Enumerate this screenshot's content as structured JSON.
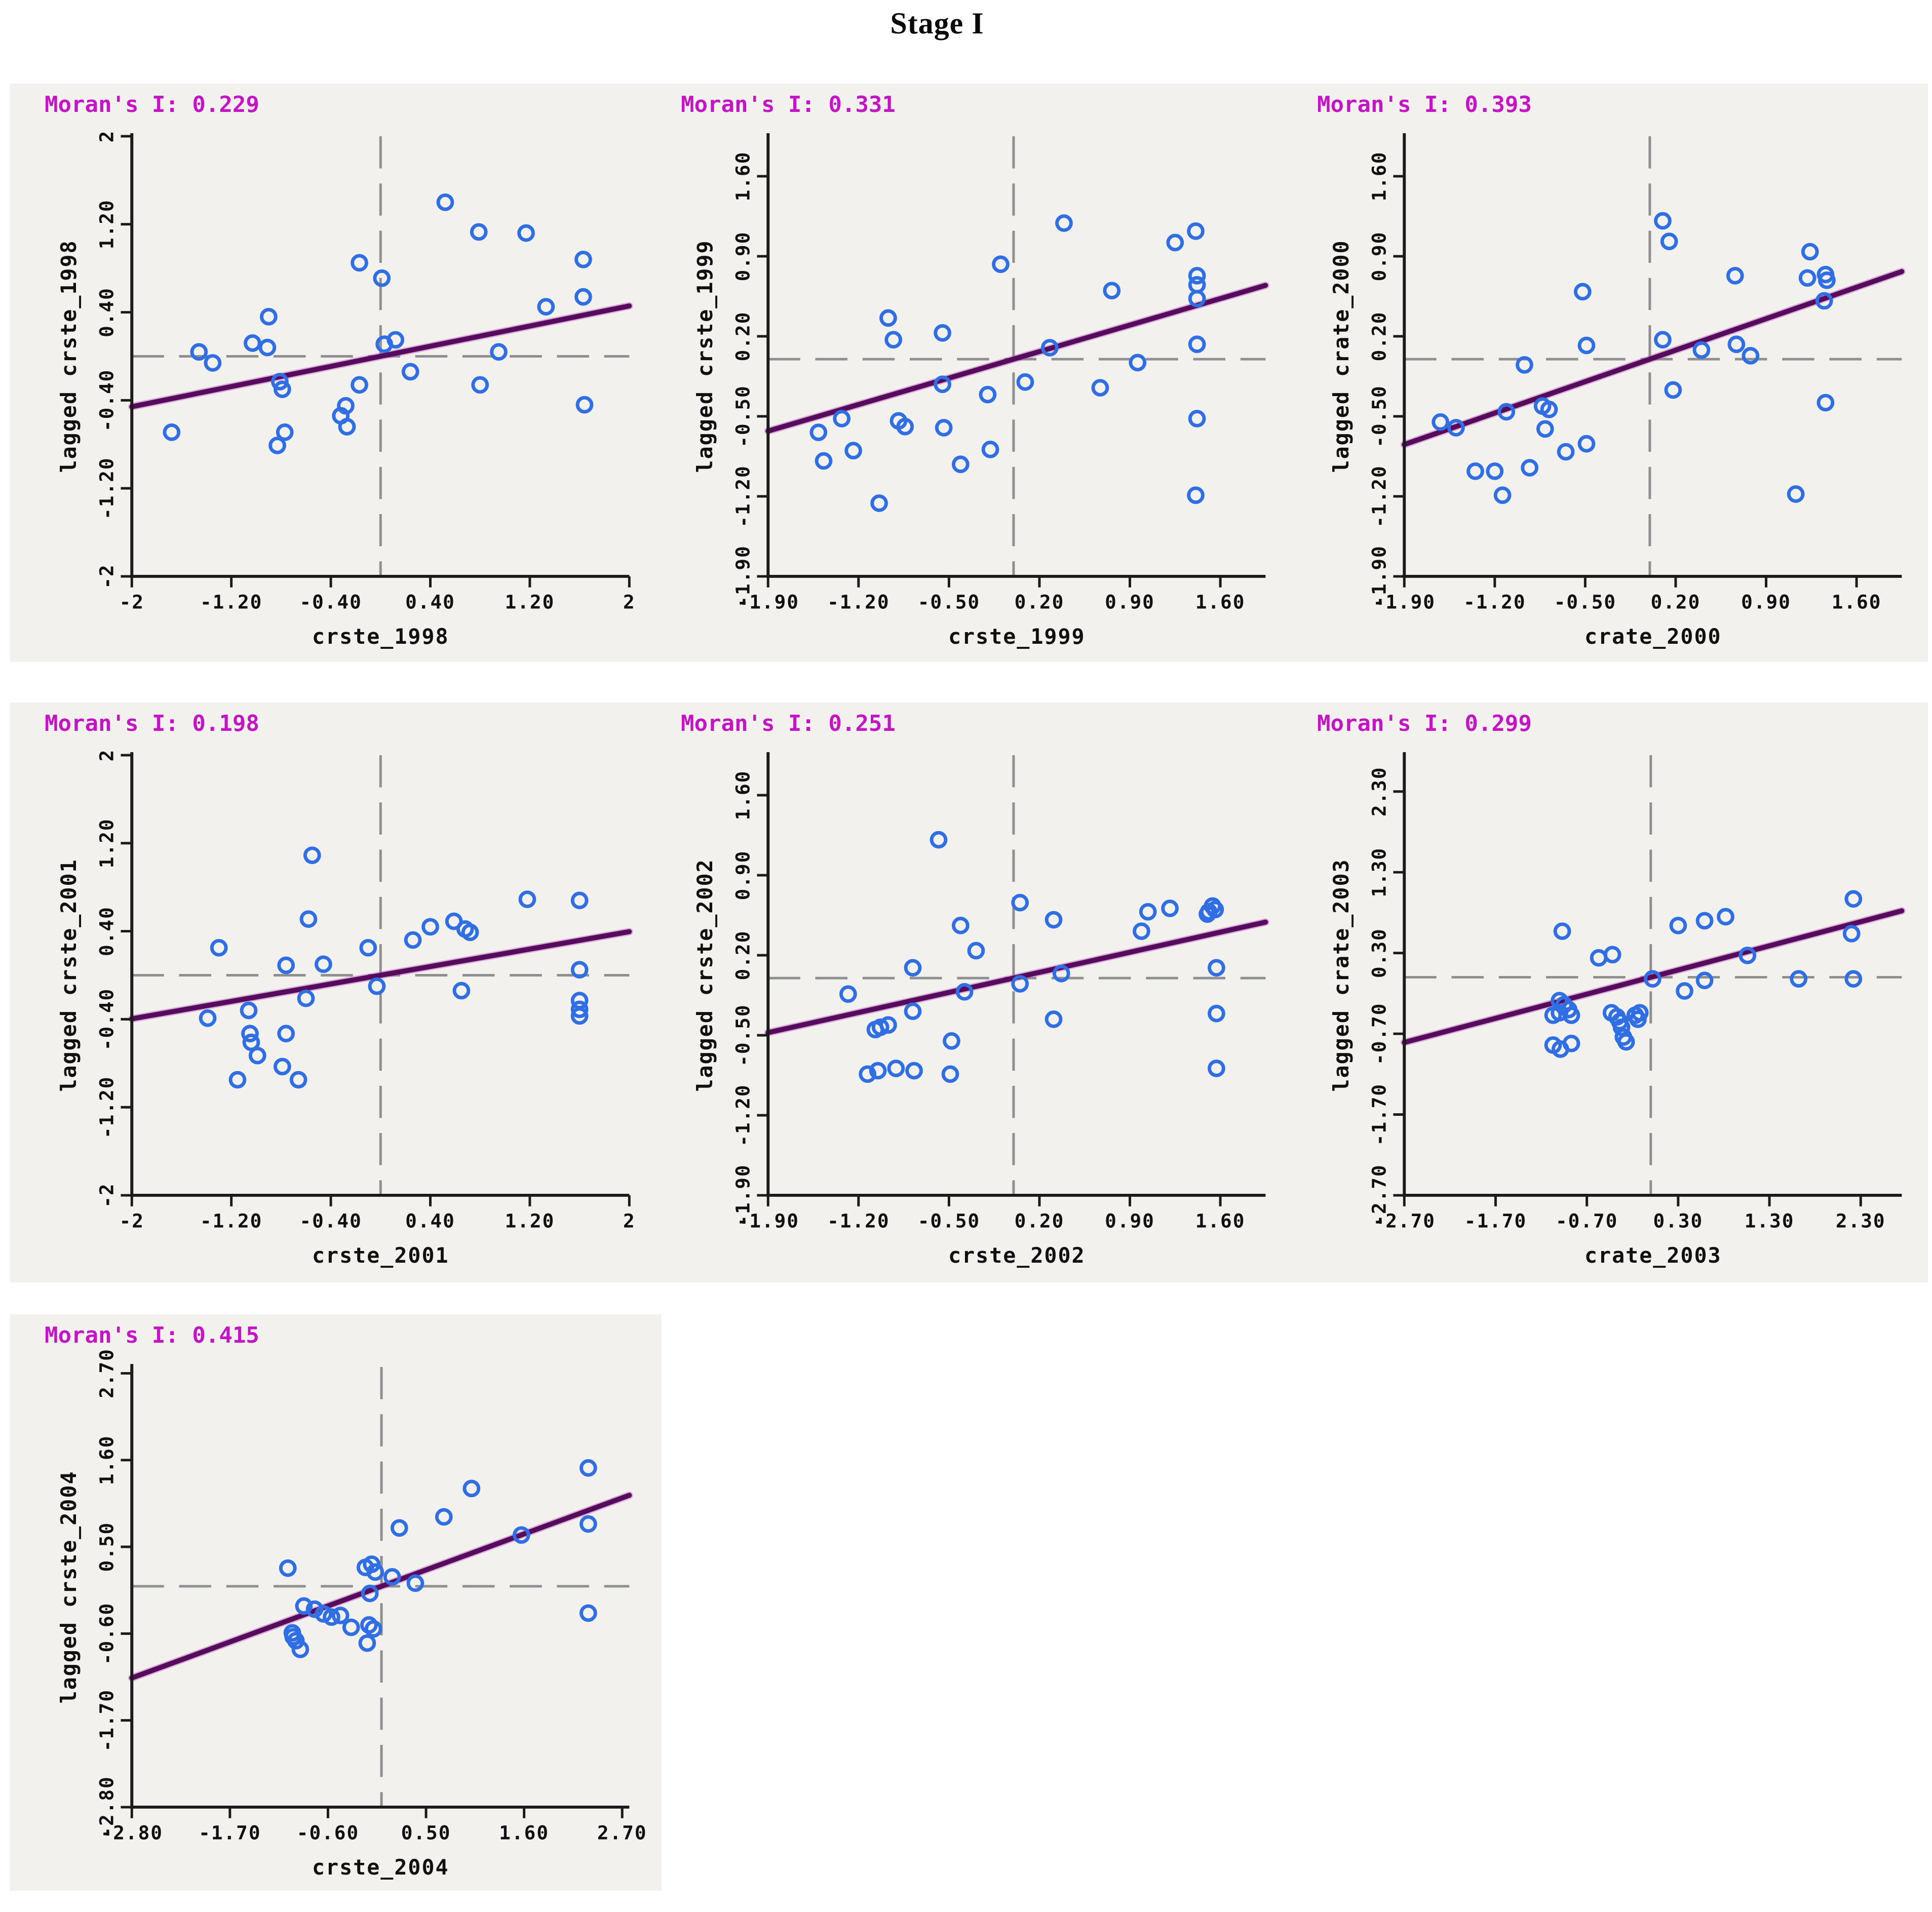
{
  "page": {
    "title": "Stage I"
  },
  "colors": {
    "panel_background": "#f2f1ee",
    "moran_text": "#c315c3",
    "point_stroke": "#2f6ee3",
    "regression_line": "#560b5c",
    "dashed_mean_lines": "#8f8f8f",
    "axis": "#1b1b1b"
  },
  "chart_data": [
    {
      "type": "scatter",
      "title": "Moran's I: 0.229",
      "moran_i": 0.229,
      "xlabel": "crste_1998",
      "ylabel": "lagged crste_1998",
      "xlim": [
        -2,
        2
      ],
      "ylim": [
        -2,
        2
      ],
      "xticks": [
        -2,
        -1.2,
        -0.4,
        0.4,
        1.2,
        2
      ],
      "xtick_labels": [
        "-2",
        "-1.20",
        "-0.40",
        "0.40",
        "1.20",
        "2"
      ],
      "yticks": [
        -2,
        -1.2,
        -0.4,
        0.4,
        1.2,
        2
      ],
      "ytick_labels": [
        "-2",
        "-1.20",
        "-0.40",
        "0.40",
        "1.20",
        "2"
      ],
      "mean_vline": 0,
      "mean_hline": 0,
      "regression": {
        "slope": 0.229,
        "intercept": 0
      },
      "grid": false,
      "legend": "none",
      "points": [
        [
          0.52,
          1.4
        ],
        [
          0.79,
          1.13
        ],
        [
          1.17,
          1.12
        ],
        [
          1.63,
          0.88
        ],
        [
          -0.17,
          0.85
        ],
        [
          0.01,
          0.71
        ],
        [
          1.63,
          0.54
        ],
        [
          1.33,
          0.45
        ],
        [
          -0.9,
          0.36
        ],
        [
          -1.03,
          0.12
        ],
        [
          -0.91,
          0.08
        ],
        [
          -1.46,
          0.04
        ],
        [
          0.03,
          0.11
        ],
        [
          0.12,
          0.15
        ],
        [
          -1.35,
          -0.06
        ],
        [
          0.24,
          -0.14
        ],
        [
          0.95,
          0.04
        ],
        [
          -0.17,
          -0.26
        ],
        [
          -0.81,
          -0.23
        ],
        [
          -0.79,
          -0.3
        ],
        [
          0.8,
          -0.26
        ],
        [
          -0.28,
          -0.45
        ],
        [
          -0.32,
          -0.54
        ],
        [
          -0.27,
          -0.64
        ],
        [
          1.64,
          -0.44
        ],
        [
          -1.68,
          -0.69
        ],
        [
          -0.77,
          -0.69
        ],
        [
          -0.83,
          -0.81
        ]
      ]
    },
    {
      "type": "scatter",
      "title": "Moran's I: 0.331",
      "moran_i": 0.331,
      "xlabel": "crste_1999",
      "ylabel": "lagged crste_1999",
      "xlim": [
        -1.9,
        1.95
      ],
      "ylim": [
        -1.9,
        1.95
      ],
      "xticks": [
        -1.9,
        -1.2,
        -0.5,
        0.2,
        0.9,
        1.6
      ],
      "xtick_labels": [
        "-1.90",
        "-1.20",
        "-0.50",
        "0.20",
        "0.90",
        "1.60"
      ],
      "yticks": [
        -1.9,
        -1.2,
        -0.5,
        0.2,
        0.9,
        1.6
      ],
      "ytick_labels": [
        "-1.90",
        "-1.20",
        "-0.50",
        "0.20",
        "0.90",
        "1.60"
      ],
      "mean_vline": 0,
      "mean_hline": 0,
      "regression": {
        "slope": 0.331,
        "intercept": 0
      },
      "grid": false,
      "legend": "none",
      "points": [
        [
          0.39,
          1.19
        ],
        [
          1.41,
          1.12
        ],
        [
          1.25,
          1.02
        ],
        [
          -0.1,
          0.83
        ],
        [
          0.76,
          0.6
        ],
        [
          1.42,
          0.73
        ],
        [
          1.42,
          0.65
        ],
        [
          1.42,
          0.53
        ],
        [
          -0.97,
          0.36
        ],
        [
          -0.93,
          0.17
        ],
        [
          -0.55,
          0.23
        ],
        [
          0.28,
          0.1
        ],
        [
          0.96,
          -0.03
        ],
        [
          1.42,
          0.13
        ],
        [
          -0.55,
          -0.22
        ],
        [
          -0.2,
          -0.31
        ],
        [
          0.09,
          -0.2
        ],
        [
          0.67,
          -0.25
        ],
        [
          -0.89,
          -0.54
        ],
        [
          -0.84,
          -0.59
        ],
        [
          -1.33,
          -0.52
        ],
        [
          -1.51,
          -0.64
        ],
        [
          -0.54,
          -0.6
        ],
        [
          -1.24,
          -0.8
        ],
        [
          -1.47,
          -0.89
        ],
        [
          -0.18,
          -0.79
        ],
        [
          -0.41,
          -0.92
        ],
        [
          1.42,
          -0.52
        ],
        [
          -1.04,
          -1.26
        ],
        [
          1.41,
          -1.19
        ]
      ]
    },
    {
      "type": "scatter",
      "title": "Moran's I: 0.393",
      "moran_i": 0.393,
      "xlabel": "crate_2000",
      "ylabel": "lagged crate_2000",
      "xlim": [
        -1.9,
        1.95
      ],
      "ylim": [
        -1.9,
        1.95
      ],
      "xticks": [
        -1.9,
        -1.2,
        -0.5,
        0.2,
        0.9,
        1.6
      ],
      "xtick_labels": [
        "-1.90",
        "-1.20",
        "-0.50",
        "0.20",
        "0.90",
        "1.60"
      ],
      "yticks": [
        -1.9,
        -1.2,
        -0.5,
        0.2,
        0.9,
        1.6
      ],
      "ytick_labels": [
        "-1.90",
        "-1.20",
        "-0.50",
        "0.20",
        "0.90",
        "1.60"
      ],
      "mean_vline": 0,
      "mean_hline": 0,
      "regression": {
        "slope": 0.393,
        "intercept": 0
      },
      "grid": false,
      "legend": "none",
      "points": [
        [
          0.1,
          1.21
        ],
        [
          0.15,
          1.03
        ],
        [
          1.24,
          0.94
        ],
        [
          0.66,
          0.73
        ],
        [
          1.22,
          0.71
        ],
        [
          1.36,
          0.74
        ],
        [
          1.37,
          0.69
        ],
        [
          -0.52,
          0.59
        ],
        [
          1.35,
          0.51
        ],
        [
          0.1,
          0.17
        ],
        [
          -0.49,
          0.12
        ],
        [
          0.4,
          0.08
        ],
        [
          0.67,
          0.13
        ],
        [
          0.78,
          0.03
        ],
        [
          -0.97,
          -0.05
        ],
        [
          0.18,
          -0.27
        ],
        [
          1.36,
          -0.38
        ],
        [
          -0.83,
          -0.41
        ],
        [
          -0.78,
          -0.44
        ],
        [
          -1.11,
          -0.46
        ],
        [
          -1.62,
          -0.55
        ],
        [
          -1.5,
          -0.6
        ],
        [
          -0.81,
          -0.61
        ],
        [
          -0.65,
          -0.81
        ],
        [
          -0.49,
          -0.74
        ],
        [
          -1.35,
          -0.98
        ],
        [
          -1.2,
          -0.98
        ],
        [
          -0.93,
          -0.95
        ],
        [
          -1.14,
          -1.19
        ],
        [
          1.13,
          -1.18
        ]
      ]
    },
    {
      "type": "scatter",
      "title": "Moran's I: 0.198",
      "moran_i": 0.198,
      "xlabel": "crste_2001",
      "ylabel": "lagged crste_2001",
      "xlim": [
        -2,
        2
      ],
      "ylim": [
        -2,
        2
      ],
      "xticks": [
        -2,
        -1.2,
        -0.4,
        0.4,
        1.2,
        2
      ],
      "xtick_labels": [
        "-2",
        "-1.20",
        "-0.40",
        "0.40",
        "1.20",
        "2"
      ],
      "yticks": [
        -2,
        -1.2,
        -0.4,
        0.4,
        1.2,
        2
      ],
      "ytick_labels": [
        "-2",
        "-1.20",
        "-0.40",
        "0.40",
        "1.20",
        "2"
      ],
      "mean_vline": 0,
      "mean_hline": 0,
      "regression": {
        "slope": 0.198,
        "intercept": 0
      },
      "grid": false,
      "legend": "none",
      "points": [
        [
          -0.55,
          1.09
        ],
        [
          1.18,
          0.69
        ],
        [
          1.6,
          0.68
        ],
        [
          -0.58,
          0.51
        ],
        [
          0.59,
          0.49
        ],
        [
          0.68,
          0.42
        ],
        [
          0.72,
          0.39
        ],
        [
          0.4,
          0.44
        ],
        [
          0.26,
          0.32
        ],
        [
          -0.1,
          0.25
        ],
        [
          -1.3,
          0.25
        ],
        [
          -0.76,
          0.09
        ],
        [
          -0.46,
          0.1
        ],
        [
          -0.03,
          -0.1
        ],
        [
          0.65,
          -0.14
        ],
        [
          1.6,
          0.05
        ],
        [
          1.6,
          -0.23
        ],
        [
          1.6,
          -0.31
        ],
        [
          1.6,
          -0.37
        ],
        [
          -0.6,
          -0.21
        ],
        [
          -1.06,
          -0.32
        ],
        [
          -1.39,
          -0.39
        ],
        [
          -1.05,
          -0.53
        ],
        [
          -1.04,
          -0.61
        ],
        [
          -0.76,
          -0.53
        ],
        [
          -0.99,
          -0.73
        ],
        [
          -0.79,
          -0.83
        ],
        [
          -1.15,
          -0.95
        ],
        [
          -0.66,
          -0.95
        ]
      ]
    },
    {
      "type": "scatter",
      "title": "Moran's I: 0.251",
      "moran_i": 0.251,
      "xlabel": "crste_2002",
      "ylabel": "lagged crste_2002",
      "xlim": [
        -1.9,
        1.95
      ],
      "ylim": [
        -1.9,
        1.95
      ],
      "xticks": [
        -1.9,
        -1.2,
        -0.5,
        0.2,
        0.9,
        1.6
      ],
      "xtick_labels": [
        "-1.90",
        "-1.20",
        "-0.50",
        "0.20",
        "0.90",
        "1.60"
      ],
      "yticks": [
        -1.9,
        -1.2,
        -0.5,
        0.2,
        0.9,
        1.6
      ],
      "ytick_labels": [
        "-1.90",
        "-1.20",
        "-0.50",
        "0.20",
        "0.90",
        "1.60"
      ],
      "mean_vline": 0,
      "mean_hline": 0,
      "regression": {
        "slope": 0.251,
        "intercept": 0
      },
      "grid": false,
      "legend": "none",
      "points": [
        [
          -0.58,
          1.21
        ],
        [
          0.05,
          0.66
        ],
        [
          0.31,
          0.51
        ],
        [
          1.04,
          0.58
        ],
        [
          1.21,
          0.61
        ],
        [
          0.99,
          0.41
        ],
        [
          1.5,
          0.56
        ],
        [
          1.54,
          0.63
        ],
        [
          1.56,
          0.6
        ],
        [
          1.51,
          0.58
        ],
        [
          -0.41,
          0.46
        ],
        [
          -0.29,
          0.24
        ],
        [
          -0.78,
          0.09
        ],
        [
          0.37,
          0.04
        ],
        [
          1.57,
          0.09
        ],
        [
          -0.38,
          -0.12
        ],
        [
          0.05,
          -0.05
        ],
        [
          -1.28,
          -0.14
        ],
        [
          -0.78,
          -0.29
        ],
        [
          0.31,
          -0.36
        ],
        [
          1.57,
          -0.31
        ],
        [
          -1.07,
          -0.45
        ],
        [
          -1.03,
          -0.43
        ],
        [
          -0.97,
          -0.41
        ],
        [
          -0.48,
          -0.55
        ],
        [
          -1.13,
          -0.84
        ],
        [
          -1.05,
          -0.81
        ],
        [
          -0.91,
          -0.79
        ],
        [
          -0.77,
          -0.81
        ],
        [
          -0.49,
          -0.84
        ],
        [
          1.57,
          -0.79
        ]
      ]
    },
    {
      "type": "scatter",
      "title": "Moran's I: 0.299",
      "moran_i": 0.299,
      "xlabel": "crate_2003",
      "ylabel": "lagged crate_2003",
      "xlim": [
        -2.7,
        2.75
      ],
      "ylim": [
        -2.7,
        2.75
      ],
      "xticks": [
        -2.7,
        -1.7,
        -0.7,
        0.3,
        1.3,
        2.3
      ],
      "xtick_labels": [
        "-2.70",
        "-1.70",
        "-0.70",
        "0.30",
        "1.30",
        "2.30"
      ],
      "yticks": [
        -2.7,
        -1.7,
        -0.7,
        0.3,
        1.3,
        2.3
      ],
      "ytick_labels": [
        "-2.70",
        "-1.70",
        "-0.70",
        "0.30",
        "1.30",
        "2.30"
      ],
      "mean_vline": 0,
      "mean_hline": 0,
      "regression": {
        "slope": 0.299,
        "intercept": 0
      },
      "grid": false,
      "legend": "none",
      "points": [
        [
          2.22,
          0.97
        ],
        [
          -0.97,
          0.57
        ],
        [
          0.3,
          0.64
        ],
        [
          0.59,
          0.7
        ],
        [
          0.82,
          0.75
        ],
        [
          2.2,
          0.54
        ],
        [
          -0.57,
          0.24
        ],
        [
          -0.42,
          0.28
        ],
        [
          1.06,
          0.27
        ],
        [
          0.02,
          -0.02
        ],
        [
          0.59,
          -0.04
        ],
        [
          1.62,
          -0.02
        ],
        [
          2.22,
          -0.02
        ],
        [
          0.37,
          -0.17
        ],
        [
          -1.0,
          -0.29
        ],
        [
          -0.95,
          -0.34
        ],
        [
          -0.9,
          -0.4
        ],
        [
          -1.0,
          -0.44
        ],
        [
          -1.07,
          -0.47
        ],
        [
          -0.87,
          -0.47
        ],
        [
          -0.43,
          -0.44
        ],
        [
          -0.37,
          -0.49
        ],
        [
          -0.34,
          -0.55
        ],
        [
          -0.32,
          -0.62
        ],
        [
          -0.17,
          -0.47
        ],
        [
          -0.12,
          -0.44
        ],
        [
          -0.14,
          -0.52
        ],
        [
          -0.3,
          -0.74
        ],
        [
          -0.27,
          -0.8
        ],
        [
          -1.07,
          -0.84
        ],
        [
          -0.99,
          -0.89
        ],
        [
          -0.87,
          -0.82
        ]
      ]
    },
    {
      "type": "scatter",
      "title": "Moran's I: 0.415",
      "moran_i": 0.415,
      "xlabel": "crste_2004",
      "ylabel": "lagged crste_2004",
      "xlim": [
        -2.8,
        2.78
      ],
      "ylim": [
        -2.8,
        2.78
      ],
      "xticks": [
        -2.8,
        -1.7,
        -0.6,
        0.5,
        1.6,
        2.7
      ],
      "xtick_labels": [
        "-2.80",
        "-1.70",
        "-0.60",
        "0.50",
        "1.60",
        "2.70"
      ],
      "yticks": [
        -2.8,
        -1.7,
        -0.6,
        0.5,
        1.6,
        2.7
      ],
      "ytick_labels": [
        "-2.80",
        "-1.70",
        "-0.60",
        "0.50",
        "1.60",
        "2.70"
      ],
      "mean_vline": 0,
      "mean_hline": 0,
      "regression": {
        "slope": 0.415,
        "intercept": 0
      },
      "grid": false,
      "legend": "none",
      "points": [
        [
          2.32,
          1.5
        ],
        [
          1.01,
          1.24
        ],
        [
          0.7,
          0.88
        ],
        [
          0.2,
          0.74
        ],
        [
          1.57,
          0.65
        ],
        [
          2.32,
          0.79
        ],
        [
          -1.05,
          0.23
        ],
        [
          -0.18,
          0.24
        ],
        [
          -0.11,
          0.28
        ],
        [
          -0.07,
          0.18
        ],
        [
          0.12,
          0.12
        ],
        [
          -0.13,
          -0.09
        ],
        [
          0.38,
          0.04
        ],
        [
          -0.87,
          -0.25
        ],
        [
          -0.75,
          -0.29
        ],
        [
          -0.65,
          -0.35
        ],
        [
          -0.56,
          -0.39
        ],
        [
          -0.46,
          -0.37
        ],
        [
          -0.34,
          -0.52
        ],
        [
          -0.14,
          -0.49
        ],
        [
          -0.09,
          -0.54
        ],
        [
          -1.0,
          -0.59
        ],
        [
          -0.99,
          -0.64
        ],
        [
          -0.96,
          -0.69
        ],
        [
          -0.91,
          -0.8
        ],
        [
          -0.16,
          -0.72
        ],
        [
          2.32,
          -0.34
        ]
      ]
    }
  ]
}
